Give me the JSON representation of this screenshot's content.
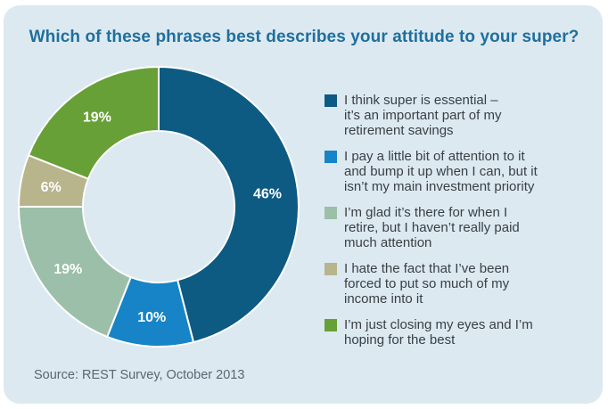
{
  "chart_data": {
    "type": "donut",
    "title": "Which of these phrases best describes your attitude to your super?",
    "source": "Source: REST Survey, October 2013",
    "slices": [
      {
        "name": "I think super is essential – it’s an important part of my retirement savings",
        "value": 46,
        "label": "46%",
        "color": "#0d5a83"
      },
      {
        "name": "I pay a little bit of attention to it and bump it up when I can, but it isn’t my main investment priority",
        "value": 10,
        "label": "10%",
        "color": "#1684c6"
      },
      {
        "name": "I’m glad it’s there for when I retire, but I haven’t really paid much attention",
        "value": 19,
        "label": "19%",
        "color": "#9bbfa8"
      },
      {
        "name": "I hate the fact that I’ve been forced to put so much of my income into it",
        "value": 6,
        "label": "6%",
        "color": "#b8b48c"
      },
      {
        "name": "I’m just closing my eyes and I’m hoping for the best",
        "value": 19,
        "label": "19%",
        "color": "#67a036"
      }
    ],
    "legend_position": "right"
  }
}
